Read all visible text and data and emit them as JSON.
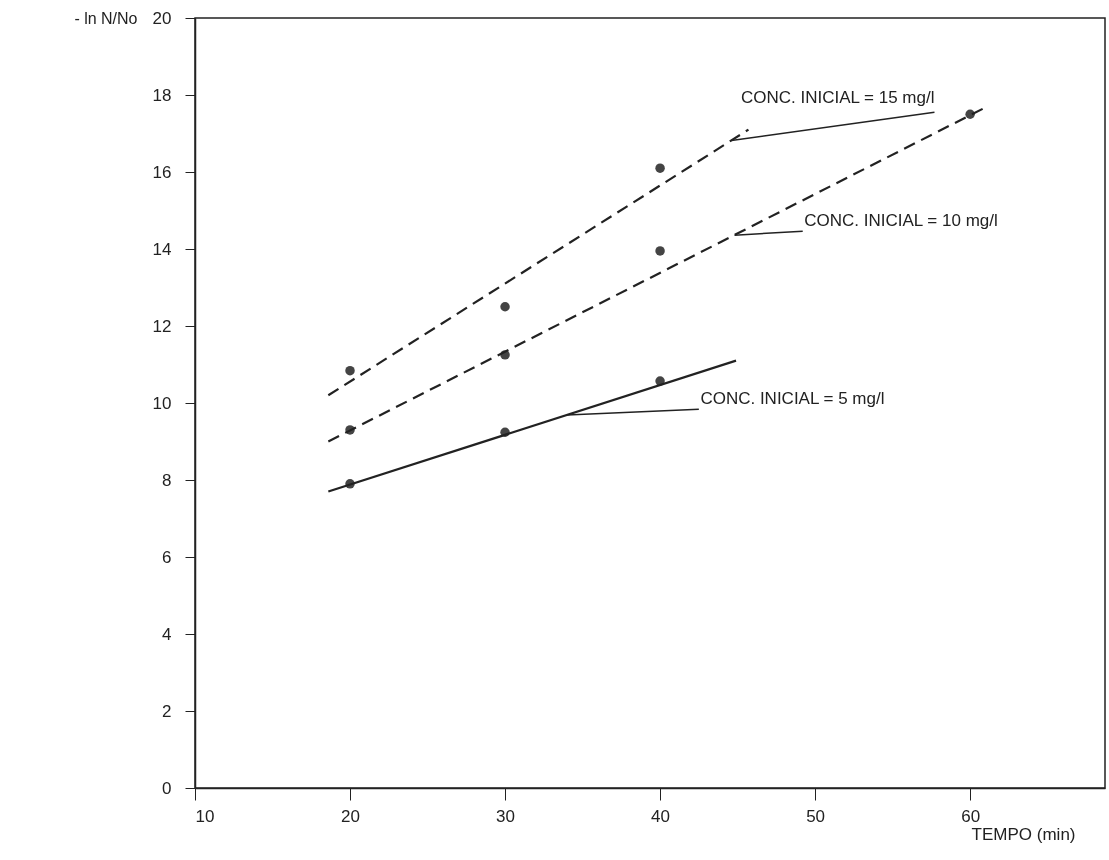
{
  "chart_data": {
    "type": "scatter",
    "xlabel": "TEMPO (min)",
    "ylabel": "- ln N/No",
    "xlim": [
      10,
      68.7
    ],
    "ylim": [
      0,
      20
    ],
    "xticks": [
      10,
      20,
      30,
      40,
      50,
      60
    ],
    "yticks": [
      0,
      2,
      4,
      6,
      8,
      10,
      12,
      14,
      16,
      18,
      20
    ],
    "grid": false,
    "marker": "circle",
    "series": [
      {
        "color": "#444444",
        "x": [
          20,
          30,
          40
        ],
        "values": [
          10.84,
          12.5,
          16.1
        ]
      },
      {
        "color": "#444444",
        "x": [
          20,
          30,
          40,
          60
        ],
        "values": [
          9.3,
          11.25,
          13.95,
          17.5
        ]
      },
      {
        "color": "#444444",
        "x": [
          20,
          30,
          40
        ],
        "values": [
          7.9,
          9.24,
          10.57
        ]
      },
      {
        "type": "line",
        "color": "#222222",
        "line_style": "dashed",
        "marker": "none",
        "x": [
          18.6,
          45.7
        ],
        "values": [
          10.2,
          17.1
        ]
      },
      {
        "type": "line",
        "color": "#222222",
        "line_style": "dashed",
        "marker": "none",
        "x": [
          18.6,
          61.1
        ],
        "values": [
          9.0,
          17.7
        ]
      },
      {
        "type": "line",
        "color": "#222222",
        "line_style": "solid",
        "marker": "none",
        "x": [
          18.6,
          44.9
        ],
        "values": [
          7.7,
          11.1
        ]
      }
    ],
    "annotations": [
      {
        "text": "CONC. INICIAL = 15 mg/l",
        "x": 44.6,
        "y": 16.82
      },
      {
        "text": "CONC. INICIAL = 10 mg/l",
        "x": 44.8,
        "y": 14.36
      },
      {
        "text": "CONC. INICIAL = 5 mg/l",
        "x": 34.0,
        "y": 9.69
      }
    ]
  }
}
